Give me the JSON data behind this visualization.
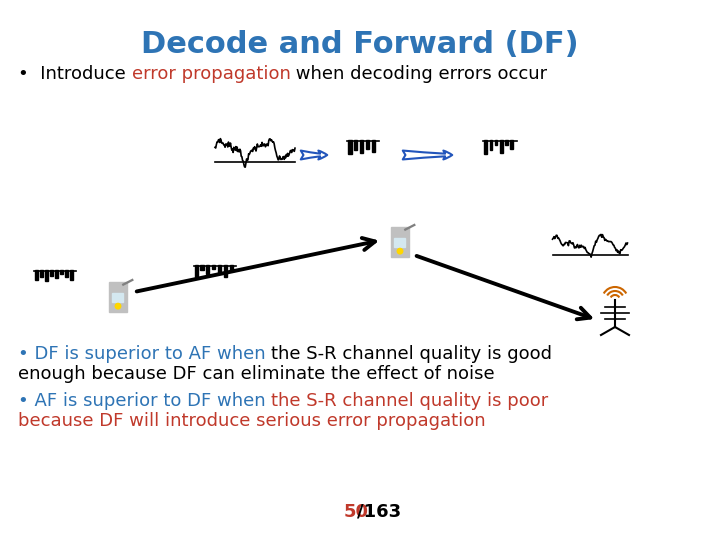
{
  "title": "Decode and Forward (DF)",
  "title_color": "#2E74B5",
  "title_fontsize": 22,
  "background_color": "#FFFFFF",
  "bullet1_text1": "•  Introduce ",
  "bullet1_color1": "#000000",
  "bullet1_text2": "error propagation",
  "bullet1_color2": "#C0392B",
  "bullet1_text3": " when decoding errors occur",
  "bullet1_color3": "#000000",
  "bullet1_fontsize": 13,
  "bullet2_text1": "• DF is superior to AF when ",
  "bullet2_color1": "#2E74B5",
  "bullet2_text2": "the S-R channel quality is good",
  "bullet2_color2": "#000000",
  "bullet2_line2": "enough because DF can eliminate the effect of noise",
  "bullet2_line2_color": "#000000",
  "bullet2_fontsize": 13,
  "bullet3_text1": "• AF is superior to DF when ",
  "bullet3_color1": "#2E74B5",
  "bullet3_text2": "the S-R channel quality is poor",
  "bullet3_color2": "#C0392B",
  "bullet3_line2": "because DF will introduce serious error propagation",
  "bullet3_line2_color": "#C0392B",
  "bullet3_fontsize": 13,
  "page_number": "50",
  "page_number_color": "#C0392B",
  "page_slash": "/163",
  "page_slash_color": "#000000",
  "page_fontsize": 13
}
